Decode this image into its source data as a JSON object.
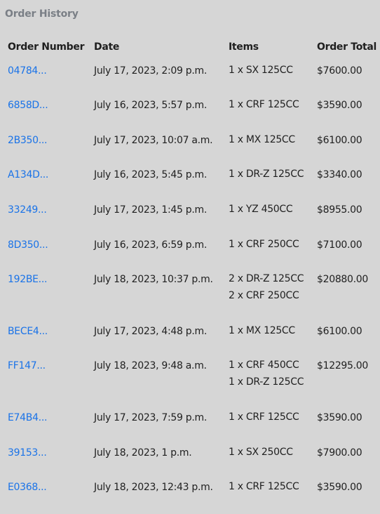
{
  "title": "Order History",
  "columns": {
    "number": "Order Number",
    "date": "Date",
    "items": "Items",
    "total": "Order Total"
  },
  "orders": [
    {
      "number": "04784...",
      "date": "July 17, 2023, 2:09 p.m.",
      "items": [
        "1 x SX 125CC"
      ],
      "total": "$7600.00"
    },
    {
      "number": "6858D...",
      "date": "July 16, 2023, 5:57 p.m.",
      "items": [
        "1 x CRF 125CC"
      ],
      "total": "$3590.00"
    },
    {
      "number": "2B350...",
      "date": "July 17, 2023, 10:07 a.m.",
      "items": [
        "1 x MX 125CC"
      ],
      "total": "$6100.00"
    },
    {
      "number": "A134D...",
      "date": "July 16, 2023, 5:45 p.m.",
      "items": [
        "1 x DR-Z 125CC"
      ],
      "total": "$3340.00"
    },
    {
      "number": "33249...",
      "date": "July 17, 2023, 1:45 p.m.",
      "items": [
        "1 x YZ 450CC"
      ],
      "total": "$8955.00"
    },
    {
      "number": "8D350...",
      "date": "July 16, 2023, 6:59 p.m.",
      "items": [
        "1 x CRF 250CC"
      ],
      "total": "$7100.00"
    },
    {
      "number": "192BE...",
      "date": "July 18, 2023, 10:37 p.m.",
      "items": [
        "2 x DR-Z 125CC",
        "2 x CRF 250CC"
      ],
      "total": "$20880.00"
    },
    {
      "number": "BECE4...",
      "date": "July 17, 2023, 4:48 p.m.",
      "items": [
        "1 x MX 125CC"
      ],
      "total": "$6100.00"
    },
    {
      "number": "FF147...",
      "date": "July 18, 2023, 9:48 a.m.",
      "items": [
        "1 x CRF 450CC",
        "1 x DR-Z 125CC"
      ],
      "total": "$12295.00"
    },
    {
      "number": "E74B4...",
      "date": "July 17, 2023, 7:59 p.m.",
      "items": [
        "1 x CRF 125CC"
      ],
      "total": "$3590.00"
    },
    {
      "number": "39153...",
      "date": "July 18, 2023, 1 p.m.",
      "items": [
        "1 x SX 250CC"
      ],
      "total": "$7900.00"
    },
    {
      "number": "E0368...",
      "date": "July 18, 2023, 12:43 p.m.",
      "items": [
        "1 x CRF 125CC"
      ],
      "total": "$3590.00"
    }
  ]
}
